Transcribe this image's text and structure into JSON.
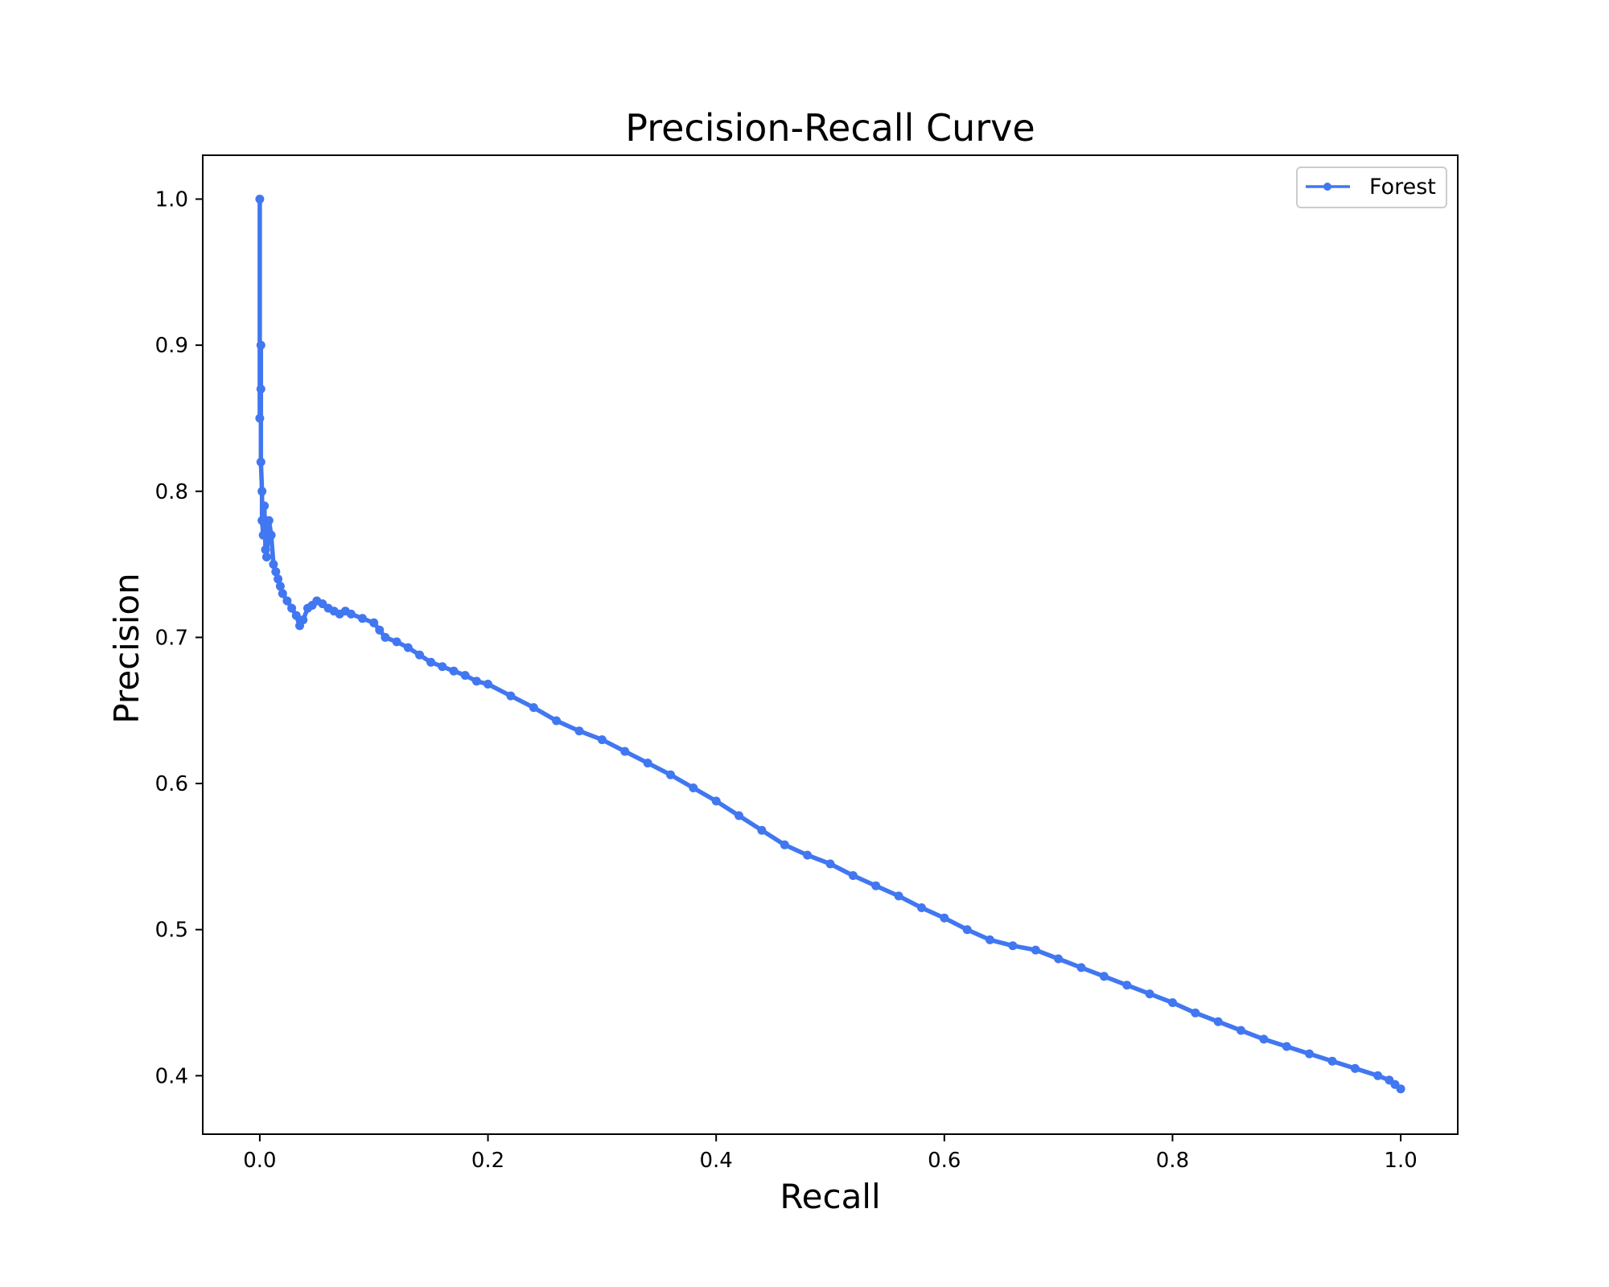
{
  "chart_data": {
    "type": "line",
    "title": "Precision-Recall Curve",
    "xlabel": "Recall",
    "ylabel": "Precision",
    "xlim": [
      -0.05,
      1.05
    ],
    "ylim": [
      0.36,
      1.03
    ],
    "xticks": [
      "0.0",
      "0.2",
      "0.4",
      "0.6",
      "0.8",
      "1.0"
    ],
    "yticks": [
      "0.4",
      "0.5",
      "0.6",
      "0.7",
      "0.8",
      "0.9",
      "1.0"
    ],
    "grid": false,
    "legend_position": "top-right",
    "series": [
      {
        "name": "Forest",
        "color": "#4177f0",
        "marker": "circle",
        "x": [
          0.0,
          0.0,
          0.001,
          0.001,
          0.001,
          0.002,
          0.002,
          0.003,
          0.004,
          0.005,
          0.006,
          0.008,
          0.01,
          0.012,
          0.014,
          0.016,
          0.018,
          0.02,
          0.024,
          0.028,
          0.032,
          0.035,
          0.038,
          0.042,
          0.046,
          0.05,
          0.055,
          0.06,
          0.065,
          0.07,
          0.075,
          0.08,
          0.09,
          0.1,
          0.105,
          0.11,
          0.12,
          0.13,
          0.14,
          0.15,
          0.16,
          0.17,
          0.18,
          0.19,
          0.2,
          0.22,
          0.24,
          0.26,
          0.28,
          0.3,
          0.32,
          0.34,
          0.36,
          0.38,
          0.4,
          0.42,
          0.44,
          0.46,
          0.48,
          0.5,
          0.52,
          0.54,
          0.56,
          0.58,
          0.6,
          0.62,
          0.64,
          0.66,
          0.68,
          0.7,
          0.72,
          0.74,
          0.76,
          0.78,
          0.8,
          0.82,
          0.84,
          0.86,
          0.88,
          0.9,
          0.92,
          0.94,
          0.96,
          0.98,
          0.99,
          0.995,
          1.0
        ],
        "y": [
          1.0,
          0.85,
          0.9,
          0.87,
          0.82,
          0.8,
          0.78,
          0.77,
          0.79,
          0.76,
          0.755,
          0.78,
          0.77,
          0.75,
          0.745,
          0.74,
          0.735,
          0.73,
          0.725,
          0.72,
          0.715,
          0.708,
          0.712,
          0.72,
          0.722,
          0.725,
          0.723,
          0.72,
          0.718,
          0.716,
          0.718,
          0.716,
          0.713,
          0.71,
          0.705,
          0.7,
          0.697,
          0.693,
          0.688,
          0.683,
          0.68,
          0.677,
          0.674,
          0.67,
          0.668,
          0.66,
          0.652,
          0.643,
          0.636,
          0.63,
          0.622,
          0.614,
          0.606,
          0.597,
          0.588,
          0.578,
          0.568,
          0.558,
          0.551,
          0.545,
          0.537,
          0.53,
          0.523,
          0.515,
          0.508,
          0.5,
          0.493,
          0.489,
          0.486,
          0.48,
          0.474,
          0.468,
          0.462,
          0.456,
          0.45,
          0.443,
          0.437,
          0.431,
          0.425,
          0.42,
          0.415,
          0.41,
          0.405,
          0.4,
          0.397,
          0.394,
          0.391
        ]
      }
    ]
  }
}
